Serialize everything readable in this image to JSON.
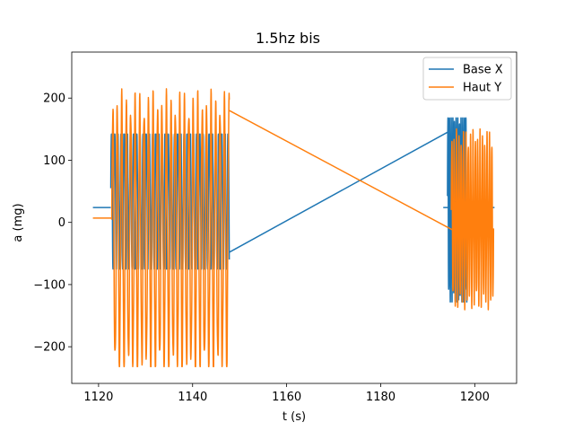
{
  "chart_data": {
    "type": "line",
    "title": "1.5hz bis",
    "xlabel": "t (s)",
    "ylabel": "a (mg)",
    "xlim": [
      1114.3,
      1208.9
    ],
    "ylim": [
      -259,
      274
    ],
    "xticks": [
      1120,
      1140,
      1160,
      1180,
      1200
    ],
    "yticks": [
      -200,
      -100,
      0,
      100,
      200
    ],
    "grid": false,
    "legend": "top-right",
    "series": [
      {
        "name": "Base X",
        "color": "#1f77b4",
        "segments": [
          {
            "x": [
              1118.8,
              1122.6
            ],
            "y": [
              24,
              24
            ]
          },
          {
            "type": "osc",
            "x0": 1122.6,
            "x1": 1147.8,
            "amp": 130,
            "offset": 40,
            "period": 0.67,
            "lo": -75,
            "hi": 142
          },
          {
            "x": [
              1147.8,
              1194.2
            ],
            "y": [
              -48,
              145
            ]
          },
          {
            "type": "osc",
            "x0": 1194.2,
            "x1": 1198.4,
            "amp": 150,
            "offset": 25,
            "period": 0.35,
            "lo": -128,
            "hi": 168
          },
          {
            "x": [
              1193.3,
              1204.2
            ],
            "y": [
              24,
              24
            ]
          }
        ]
      },
      {
        "name": "Haut Y",
        "color": "#ff7f0e",
        "segments": [
          {
            "x": [
              1118.8,
              1122.8
            ],
            "y": [
              7,
              7
            ]
          },
          {
            "type": "osc",
            "x0": 1122.8,
            "x1": 1147.8,
            "amp": 210,
            "offset": -20,
            "period": 0.95,
            "lo": -232,
            "hi": 248
          },
          {
            "x": [
              1147.8,
              1196.0
            ],
            "y": [
              180,
              -15
            ]
          },
          {
            "type": "osc",
            "x0": 1195.0,
            "x1": 1204.0,
            "amp": 130,
            "offset": 5,
            "period": 0.5,
            "lo": -142,
            "hi": 178
          }
        ]
      }
    ]
  }
}
